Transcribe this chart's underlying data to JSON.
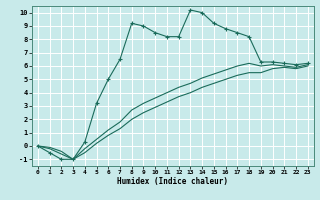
{
  "xlabel": "Humidex (Indice chaleur)",
  "bg_color": "#c8eaea",
  "grid_color": "#ffffff",
  "line_color": "#1a6b5a",
  "xlim": [
    -0.5,
    23.5
  ],
  "ylim": [
    -1.5,
    10.5
  ],
  "xticks": [
    0,
    1,
    2,
    3,
    4,
    5,
    6,
    7,
    8,
    9,
    10,
    11,
    12,
    13,
    14,
    15,
    16,
    17,
    18,
    19,
    20,
    21,
    22,
    23
  ],
  "yticks": [
    -1,
    0,
    1,
    2,
    3,
    4,
    5,
    6,
    7,
    8,
    9,
    10
  ],
  "line1_x": [
    0,
    1,
    2,
    3,
    4,
    5,
    6,
    7,
    8,
    9,
    10,
    11,
    12,
    13,
    14,
    15,
    16,
    17,
    18,
    19,
    20,
    21,
    22,
    23
  ],
  "line1_y": [
    0.0,
    -0.5,
    -1.0,
    -1.0,
    0.3,
    3.2,
    5.0,
    6.5,
    9.2,
    9.0,
    8.5,
    8.2,
    8.2,
    10.2,
    10.0,
    9.2,
    8.8,
    8.5,
    8.2,
    6.3,
    6.3,
    6.2,
    6.1,
    6.2
  ],
  "line2_full_x": [
    0,
    1,
    2,
    3,
    4,
    5,
    6,
    7,
    8,
    9,
    10,
    11,
    12,
    13,
    14,
    15,
    16,
    17,
    18,
    19,
    20,
    21,
    22,
    23
  ],
  "line2_full_y": [
    0.0,
    -0.2,
    -0.6,
    -1.0,
    -0.5,
    0.2,
    0.8,
    1.3,
    2.0,
    2.5,
    2.9,
    3.3,
    3.7,
    4.0,
    4.4,
    4.7,
    5.0,
    5.3,
    5.5,
    5.5,
    5.8,
    5.9,
    5.8,
    6.0
  ],
  "line3_full_x": [
    0,
    1,
    2,
    3,
    4,
    5,
    6,
    7,
    8,
    9,
    10,
    11,
    12,
    13,
    14,
    15,
    16,
    17,
    18,
    19,
    20,
    21,
    22,
    23
  ],
  "line3_full_y": [
    0.0,
    -0.1,
    -0.4,
    -1.0,
    -0.2,
    0.5,
    1.2,
    1.8,
    2.7,
    3.2,
    3.6,
    4.0,
    4.4,
    4.7,
    5.1,
    5.4,
    5.7,
    6.0,
    6.2,
    6.0,
    6.1,
    6.0,
    5.9,
    6.1
  ]
}
